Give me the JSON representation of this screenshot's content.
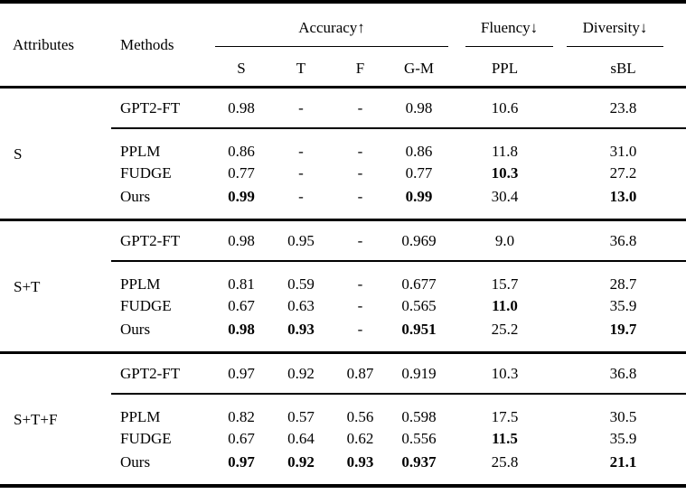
{
  "table": {
    "header": {
      "attributes": "Attributes",
      "methods": "Methods",
      "groups": [
        {
          "label": "Accuracy↑",
          "subcols": [
            "S",
            "T",
            "F",
            "G-M"
          ]
        },
        {
          "label": "Fluency↓",
          "subcols": [
            "PPL"
          ]
        },
        {
          "label": "Diversity↓",
          "subcols": [
            "sBL"
          ]
        }
      ]
    },
    "blocks": [
      {
        "attribute": "S",
        "rows": [
          {
            "method": "GPT2-FT",
            "values": [
              "0.98",
              "-",
              "-",
              "0.98",
              "10.6",
              "23.8"
            ],
            "bold": [
              false,
              false,
              false,
              false,
              false,
              false
            ]
          },
          {
            "method": "PPLM",
            "values": [
              "0.86",
              "-",
              "-",
              "0.86",
              "11.8",
              "31.0"
            ],
            "bold": [
              false,
              false,
              false,
              false,
              false,
              false
            ]
          },
          {
            "method": "FUDGE",
            "values": [
              "0.77",
              "-",
              "-",
              "0.77",
              "10.3",
              "27.2"
            ],
            "bold": [
              false,
              false,
              false,
              false,
              true,
              false
            ]
          },
          {
            "method": "Ours",
            "values": [
              "0.99",
              "-",
              "-",
              "0.99",
              "30.4",
              "13.0"
            ],
            "bold": [
              true,
              false,
              false,
              true,
              false,
              true
            ]
          }
        ]
      },
      {
        "attribute": "S+T",
        "rows": [
          {
            "method": "GPT2-FT",
            "values": [
              "0.98",
              "0.95",
              "-",
              "0.969",
              "9.0",
              "36.8"
            ],
            "bold": [
              false,
              false,
              false,
              false,
              false,
              false
            ]
          },
          {
            "method": "PPLM",
            "values": [
              "0.81",
              "0.59",
              "-",
              "0.677",
              "15.7",
              "28.7"
            ],
            "bold": [
              false,
              false,
              false,
              false,
              false,
              false
            ]
          },
          {
            "method": "FUDGE",
            "values": [
              "0.67",
              "0.63",
              "-",
              "0.565",
              "11.0",
              "35.9"
            ],
            "bold": [
              false,
              false,
              false,
              false,
              true,
              false
            ]
          },
          {
            "method": "Ours",
            "values": [
              "0.98",
              "0.93",
              "-",
              "0.951",
              "25.2",
              "19.7"
            ],
            "bold": [
              true,
              true,
              false,
              true,
              false,
              true
            ]
          }
        ]
      },
      {
        "attribute": "S+T+F",
        "rows": [
          {
            "method": "GPT2-FT",
            "values": [
              "0.97",
              "0.92",
              "0.87",
              "0.919",
              "10.3",
              "36.8"
            ],
            "bold": [
              false,
              false,
              false,
              false,
              false,
              false
            ]
          },
          {
            "method": "PPLM",
            "values": [
              "0.82",
              "0.57",
              "0.56",
              "0.598",
              "17.5",
              "30.5"
            ],
            "bold": [
              false,
              false,
              false,
              false,
              false,
              false
            ]
          },
          {
            "method": "FUDGE",
            "values": [
              "0.67",
              "0.64",
              "0.62",
              "0.556",
              "11.5",
              "35.9"
            ],
            "bold": [
              false,
              false,
              false,
              false,
              true,
              false
            ]
          },
          {
            "method": "Ours",
            "values": [
              "0.97",
              "0.92",
              "0.93",
              "0.937",
              "25.8",
              "21.1"
            ],
            "bold": [
              true,
              true,
              true,
              true,
              false,
              true
            ]
          }
        ]
      }
    ]
  }
}
